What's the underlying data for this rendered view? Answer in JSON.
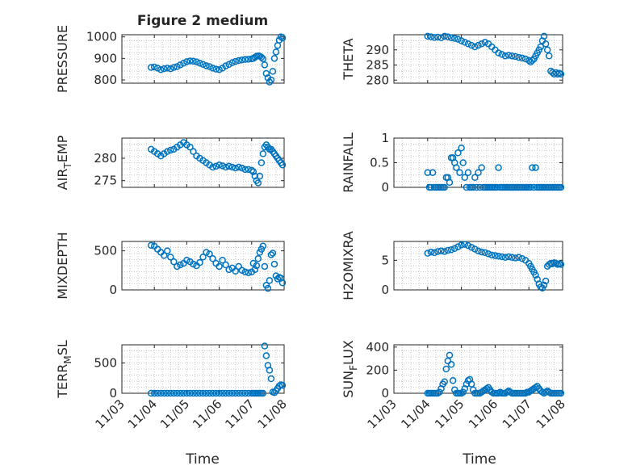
{
  "figure": {
    "title": "Figure 2 medium",
    "xlabel": "Time",
    "marker_color": "#0072BD",
    "xticks": [
      "11/03",
      "11/04",
      "11/05",
      "11/06",
      "11/07",
      "11/08"
    ]
  },
  "chart_data": [
    {
      "type": "scatter",
      "ylabel": "PRESSURE",
      "ylim": [
        785,
        1010
      ],
      "yticks": [
        {
          "v": 800,
          "t": "800"
        },
        {
          "v": 900,
          "t": "900"
        },
        {
          "v": 1000,
          "t": "1000"
        }
      ],
      "x": [
        3.9,
        4.0,
        4.1,
        4.2,
        4.3,
        4.4,
        4.5,
        4.6,
        4.7,
        4.8,
        4.9,
        5.0,
        5.1,
        5.2,
        5.3,
        5.4,
        5.5,
        5.6,
        5.7,
        5.8,
        5.9,
        6.0,
        6.1,
        6.2,
        6.3,
        6.4,
        6.5,
        6.6,
        6.7,
        6.8,
        6.9,
        7.0,
        7.05,
        7.1,
        7.15,
        7.2,
        7.25,
        7.3,
        7.35,
        7.4,
        7.45,
        7.5,
        7.55,
        7.6,
        7.65,
        7.7,
        7.75,
        7.8,
        7.85,
        7.9,
        7.95
      ],
      "y": [
        858,
        860,
        855,
        848,
        852,
        855,
        852,
        858,
        862,
        870,
        878,
        885,
        888,
        887,
        884,
        878,
        872,
        866,
        862,
        855,
        850,
        848,
        855,
        865,
        872,
        880,
        886,
        890,
        893,
        895,
        896,
        898,
        900,
        905,
        910,
        912,
        910,
        905,
        898,
        870,
        830,
        810,
        790,
        800,
        840,
        900,
        930,
        960,
        985,
        1000,
        995
      ]
    },
    {
      "type": "scatter",
      "ylabel": "THETA",
      "ylim": [
        279,
        295
      ],
      "yticks": [
        {
          "v": 280,
          "t": "280"
        },
        {
          "v": 285,
          "t": "285"
        },
        {
          "v": 290,
          "t": "290"
        }
      ],
      "x": [
        4.0,
        4.1,
        4.2,
        4.3,
        4.4,
        4.5,
        4.6,
        4.7,
        4.8,
        4.9,
        5.0,
        5.1,
        5.2,
        5.3,
        5.4,
        5.5,
        5.6,
        5.7,
        5.8,
        5.9,
        6.0,
        6.1,
        6.2,
        6.3,
        6.4,
        6.5,
        6.6,
        6.7,
        6.8,
        6.9,
        7.0,
        7.05,
        7.1,
        7.15,
        7.2,
        7.25,
        7.3,
        7.35,
        7.4,
        7.45,
        7.5,
        7.55,
        7.6,
        7.65,
        7.7,
        7.75,
        7.8,
        7.85,
        7.9,
        7.95
      ],
      "y": [
        294.5,
        294.3,
        294.1,
        294.2,
        294.0,
        294.5,
        294.3,
        294.0,
        293.8,
        293.5,
        293.0,
        292.5,
        292.0,
        291.5,
        291.0,
        291.5,
        292.0,
        292.5,
        292.0,
        291.0,
        290.0,
        289.0,
        288.5,
        288.0,
        288.2,
        288.0,
        287.8,
        287.5,
        287.3,
        287.0,
        286.5,
        286.0,
        286.5,
        287.0,
        288.0,
        289.0,
        290.0,
        291.0,
        293.0,
        294.5,
        292.0,
        290.0,
        288.0,
        283.0,
        282.5,
        282.0,
        282.5,
        282.0,
        282.3,
        282.0
      ]
    },
    {
      "type": "scatter",
      "ylabel": "AIR_TEMP",
      "ylim": [
        273.5,
        284.5
      ],
      "yticks": [
        {
          "v": 275,
          "t": "275"
        },
        {
          "v": 280,
          "t": "280"
        }
      ],
      "x": [
        3.9,
        4.0,
        4.1,
        4.2,
        4.3,
        4.4,
        4.5,
        4.6,
        4.7,
        4.8,
        4.9,
        5.0,
        5.1,
        5.2,
        5.3,
        5.4,
        5.5,
        5.6,
        5.7,
        5.8,
        5.9,
        6.0,
        6.1,
        6.2,
        6.3,
        6.4,
        6.5,
        6.6,
        6.7,
        6.8,
        6.9,
        7.0,
        7.05,
        7.1,
        7.15,
        7.2,
        7.25,
        7.3,
        7.35,
        7.4,
        7.45,
        7.5,
        7.55,
        7.6,
        7.65,
        7.7,
        7.75,
        7.8,
        7.85,
        7.9,
        7.95
      ],
      "y": [
        282.0,
        281.5,
        281.0,
        280.5,
        281.0,
        281.5,
        281.8,
        282.0,
        282.5,
        283.0,
        283.5,
        283.0,
        282.5,
        281.5,
        280.5,
        280.0,
        279.5,
        279.0,
        278.5,
        278.0,
        278.2,
        278.5,
        278.3,
        278.0,
        278.2,
        278.0,
        277.8,
        278.0,
        277.8,
        277.5,
        277.5,
        277.3,
        277.0,
        276.0,
        275.0,
        274.5,
        276.0,
        279.0,
        281.0,
        282.5,
        283.0,
        282.5,
        282.0,
        282.0,
        281.5,
        281.0,
        280.5,
        280.0,
        279.5,
        279.0,
        278.5
      ]
    },
    {
      "type": "scatter",
      "ylabel": "RAINFALL",
      "ylim": [
        0,
        1
      ],
      "yticks": [
        {
          "v": 0,
          "t": "0"
        },
        {
          "v": 0.5,
          "t": "0.5"
        },
        {
          "v": 1,
          "t": "1"
        }
      ],
      "x": [
        4.0,
        4.05,
        4.1,
        4.15,
        4.2,
        4.25,
        4.3,
        4.35,
        4.4,
        4.45,
        4.5,
        4.55,
        4.6,
        4.65,
        4.7,
        4.75,
        4.8,
        4.85,
        4.9,
        4.95,
        5.0,
        5.05,
        5.1,
        5.15,
        5.2,
        5.25,
        5.3,
        5.35,
        5.4,
        5.45,
        5.5,
        5.55,
        5.6,
        5.65,
        5.7,
        5.75,
        5.8,
        5.85,
        5.9,
        5.95,
        6.0,
        6.05,
        6.1,
        6.15,
        6.2,
        6.25,
        6.3,
        6.35,
        6.4,
        6.45,
        6.5,
        6.55,
        6.6,
        6.65,
        6.7,
        6.75,
        6.8,
        6.85,
        6.9,
        6.95,
        7.0,
        7.05,
        7.1,
        7.15,
        7.2,
        7.25,
        7.3,
        7.35,
        7.4,
        7.45,
        7.5,
        7.55,
        7.6,
        7.65,
        7.7,
        7.75,
        7.8,
        7.85,
        7.9,
        7.95
      ],
      "y": [
        0.3,
        0,
        0,
        0.3,
        0,
        0,
        0,
        0,
        0,
        0,
        0,
        0.2,
        0.2,
        0.1,
        0.6,
        0.6,
        0.5,
        0.4,
        0.7,
        0.3,
        0.8,
        0.5,
        0.2,
        0,
        0.3,
        0,
        0,
        0,
        0.2,
        0,
        0.3,
        0,
        0.4,
        0,
        0,
        0,
        0,
        0,
        0,
        0,
        0,
        0,
        0.4,
        0,
        0,
        0,
        0,
        0,
        0,
        0,
        0,
        0,
        0,
        0,
        0,
        0,
        0,
        0,
        0,
        0,
        0,
        0,
        0.4,
        0,
        0.4,
        0,
        0,
        0,
        0,
        0,
        0,
        0,
        0,
        0,
        0,
        0,
        0,
        0,
        0,
        0
      ]
    },
    {
      "type": "scatter",
      "ylabel": "MIXDEPTH",
      "ylim": [
        0,
        620
      ],
      "yticks": [
        {
          "v": 0,
          "t": "0"
        },
        {
          "v": 500,
          "t": "500"
        }
      ],
      "x": [
        3.9,
        4.0,
        4.1,
        4.2,
        4.3,
        4.4,
        4.5,
        4.6,
        4.7,
        4.8,
        4.9,
        5.0,
        5.1,
        5.2,
        5.3,
        5.4,
        5.5,
        5.6,
        5.7,
        5.8,
        5.9,
        6.0,
        6.1,
        6.2,
        6.3,
        6.4,
        6.5,
        6.6,
        6.7,
        6.8,
        6.9,
        7.0,
        7.05,
        7.1,
        7.15,
        7.2,
        7.25,
        7.3,
        7.35,
        7.4,
        7.45,
        7.5,
        7.55,
        7.6,
        7.65,
        7.7,
        7.75,
        7.8,
        7.85,
        7.9,
        7.95
      ],
      "y": [
        570,
        560,
        520,
        480,
        440,
        500,
        420,
        360,
        300,
        320,
        340,
        380,
        360,
        330,
        310,
        350,
        420,
        480,
        460,
        400,
        340,
        300,
        380,
        320,
        260,
        280,
        240,
        300,
        250,
        230,
        220,
        230,
        340,
        260,
        310,
        400,
        480,
        520,
        560,
        300,
        60,
        20,
        120,
        450,
        470,
        330,
        180,
        140,
        160,
        150,
        90
      ]
    },
    {
      "type": "scatter",
      "ylabel": "H2OMIXRA",
      "ylim": [
        0,
        8.2
      ],
      "yticks": [
        {
          "v": 0,
          "t": "0"
        },
        {
          "v": 5,
          "t": "5"
        }
      ],
      "x": [
        4.0,
        4.1,
        4.2,
        4.3,
        4.4,
        4.5,
        4.6,
        4.7,
        4.8,
        4.9,
        5.0,
        5.1,
        5.2,
        5.3,
        5.4,
        5.5,
        5.6,
        5.7,
        5.8,
        5.9,
        6.0,
        6.1,
        6.2,
        6.3,
        6.4,
        6.5,
        6.6,
        6.7,
        6.8,
        6.9,
        7.0,
        7.05,
        7.1,
        7.15,
        7.2,
        7.25,
        7.3,
        7.35,
        7.4,
        7.45,
        7.5,
        7.55,
        7.6,
        7.65,
        7.7,
        7.75,
        7.8,
        7.85,
        7.9,
        7.95
      ],
      "y": [
        6.2,
        6.4,
        6.3,
        6.5,
        6.6,
        6.5,
        6.7,
        6.8,
        7.0,
        7.3,
        7.6,
        7.7,
        7.5,
        7.2,
        6.9,
        6.6,
        6.4,
        6.3,
        6.1,
        5.9,
        5.8,
        5.7,
        5.6,
        5.5,
        5.6,
        5.5,
        5.4,
        5.5,
        5.3,
        5.0,
        4.5,
        4.0,
        3.5,
        3.0,
        2.5,
        1.8,
        1.0,
        0.5,
        0.3,
        0.8,
        1.5,
        4.0,
        4.3,
        4.5,
        4.4,
        4.6,
        4.5,
        4.3,
        4.4,
        4.3
      ]
    },
    {
      "type": "scatter",
      "ylabel": "TERR_MSL",
      "ylim": [
        0,
        800
      ],
      "yticks": [
        {
          "v": 0,
          "t": "0"
        },
        {
          "v": 500,
          "t": "500"
        }
      ],
      "x": [
        3.9,
        4.0,
        4.1,
        4.2,
        4.3,
        4.4,
        4.5,
        4.6,
        4.7,
        4.8,
        4.9,
        5.0,
        5.1,
        5.2,
        5.3,
        5.4,
        5.5,
        5.6,
        5.7,
        5.8,
        5.9,
        6.0,
        6.1,
        6.2,
        6.3,
        6.4,
        6.5,
        6.6,
        6.7,
        6.8,
        6.9,
        7.0,
        7.05,
        7.1,
        7.15,
        7.2,
        7.25,
        7.3,
        7.35,
        7.4,
        7.45,
        7.5,
        7.55,
        7.6,
        7.65,
        7.7,
        7.75,
        7.8,
        7.85,
        7.9,
        7.95
      ],
      "y": [
        0,
        0,
        0,
        0,
        0,
        0,
        0,
        0,
        0,
        0,
        0,
        0,
        0,
        0,
        0,
        0,
        0,
        0,
        0,
        0,
        0,
        0,
        0,
        0,
        0,
        0,
        0,
        0,
        0,
        0,
        0,
        0,
        0,
        0,
        0,
        0,
        0,
        0,
        0,
        780,
        620,
        460,
        380,
        240,
        20,
        10,
        40,
        80,
        120,
        140,
        130
      ]
    },
    {
      "type": "scatter",
      "ylabel": "SUN_FLUX",
      "ylim": [
        0,
        420
      ],
      "yticks": [
        {
          "v": 0,
          "t": "0"
        },
        {
          "v": 200,
          "t": "200"
        },
        {
          "v": 400,
          "t": "400"
        }
      ],
      "x": [
        4.0,
        4.05,
        4.1,
        4.15,
        4.2,
        4.25,
        4.3,
        4.35,
        4.4,
        4.45,
        4.5,
        4.55,
        4.6,
        4.65,
        4.7,
        4.75,
        4.8,
        4.85,
        4.9,
        4.95,
        5.0,
        5.05,
        5.1,
        5.15,
        5.2,
        5.25,
        5.3,
        5.35,
        5.4,
        5.45,
        5.5,
        5.55,
        5.6,
        5.65,
        5.7,
        5.75,
        5.8,
        5.85,
        5.9,
        5.95,
        6.0,
        6.05,
        6.1,
        6.15,
        6.2,
        6.25,
        6.3,
        6.35,
        6.4,
        6.45,
        6.5,
        6.55,
        6.6,
        6.65,
        6.7,
        6.75,
        6.8,
        6.85,
        6.9,
        6.95,
        7.0,
        7.05,
        7.1,
        7.15,
        7.2,
        7.25,
        7.3,
        7.35,
        7.4,
        7.45,
        7.5,
        7.55,
        7.6,
        7.65,
        7.7,
        7.75,
        7.8,
        7.85,
        7.9,
        7.95
      ],
      "y": [
        0,
        0,
        0,
        0,
        0,
        0,
        0,
        10,
        40,
        80,
        100,
        210,
        280,
        330,
        250,
        110,
        30,
        0,
        0,
        0,
        0,
        10,
        40,
        80,
        110,
        120,
        80,
        30,
        0,
        0,
        0,
        0,
        10,
        20,
        30,
        40,
        50,
        30,
        10,
        0,
        0,
        0,
        0,
        10,
        0,
        0,
        0,
        10,
        20,
        10,
        0,
        0,
        0,
        0,
        0,
        0,
        0,
        0,
        0,
        10,
        10,
        20,
        30,
        40,
        50,
        60,
        40,
        20,
        10,
        0,
        10,
        20,
        10,
        0,
        0,
        0,
        0,
        0,
        0,
        0
      ]
    }
  ]
}
